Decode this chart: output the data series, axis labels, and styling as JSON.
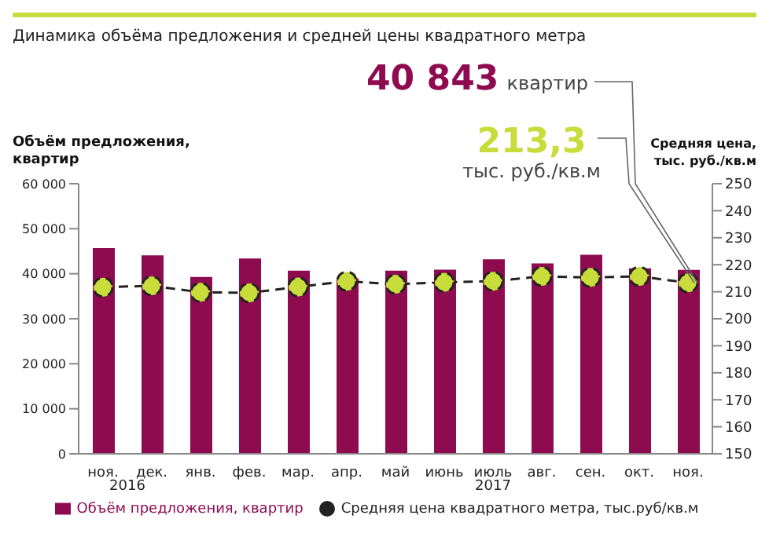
{
  "chart_data": {
    "type": "bar",
    "title": "Динамика объёма предложения и средней цены квадратного метра",
    "ylabel": "Объём предложения, квартир",
    "y2label": "Средняя цена, тыс. руб./кв.м",
    "categories": [
      "ноя.",
      "дек.",
      "янв.",
      "фев.",
      "мар.",
      "апр.",
      "май",
      "июнь",
      "июль",
      "авг.",
      "сен.",
      "окт.",
      "ноя."
    ],
    "series": [
      {
        "name": "Объём предложения, квартир",
        "color": "#8e0b50",
        "values": [
          45700,
          44100,
          39300,
          43400,
          40700,
          39000,
          40700,
          40900,
          43200,
          42300,
          44200,
          41200,
          40843
        ]
      },
      {
        "name": "Средняя цена квадратного метра, тыс.руб/кв.м",
        "type": "line",
        "axis": "y2",
        "color": "#c8dc3c",
        "values": [
          211.7,
          212.2,
          209.8,
          209.6,
          211.8,
          213.9,
          212.8,
          213.5,
          213.9,
          215.7,
          215.3,
          215.7,
          213.3
        ]
      }
    ],
    "ylim": [
      0,
      60000
    ],
    "yticks": [
      {
        "value": 0,
        "label": "0"
      },
      {
        "value": 10000,
        "label": "10 000"
      },
      {
        "value": 20000,
        "label": "20 000"
      },
      {
        "value": 30000,
        "label": "30 000"
      },
      {
        "value": 40000,
        "label": "40 000"
      },
      {
        "value": 50000,
        "label": "50 000"
      },
      {
        "value": 60000,
        "label": "60 000"
      }
    ],
    "y2lim": [
      150,
      250
    ],
    "y2ticks": [
      150,
      160,
      170,
      180,
      190,
      200,
      210,
      220,
      230,
      240,
      250
    ],
    "annotations": [
      {
        "text": "40 843 квартир"
      },
      {
        "text": "213,3 тыс. руб./кв.м"
      },
      {
        "text": "2016"
      },
      {
        "text": "2017"
      }
    ],
    "marker": "circle",
    "line_style": "dashed",
    "legend": "bottom"
  }
}
